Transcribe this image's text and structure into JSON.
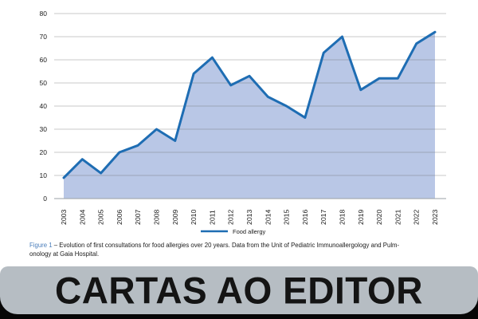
{
  "chart_data": {
    "type": "area",
    "x": [
      "2003",
      "2004",
      "2005",
      "2006",
      "2007",
      "2008",
      "2009",
      "2010",
      "2011",
      "2012",
      "2013",
      "2014",
      "2015",
      "2016",
      "2017",
      "2018",
      "2019",
      "2020",
      "2021",
      "2022",
      "2023"
    ],
    "series": [
      {
        "name": "Food allergy",
        "values": [
          9,
          17,
          11,
          20,
          23,
          30,
          25,
          54,
          61,
          49,
          53,
          44,
          40,
          35,
          63,
          70,
          47,
          52,
          52,
          67,
          72
        ]
      }
    ],
    "xlabel": "",
    "ylabel": "",
    "ylim": [
      0,
      80
    ],
    "ytick_step": 10,
    "grid": true,
    "legend_position": "bottom-center",
    "line_color": "#1e6db3",
    "fill_color": "#b9c7e6",
    "gridline_color": "rgba(110,110,110,0.38)",
    "axis_line_color": "#9aa0a6",
    "tick_label_color": "#1a1a1a"
  },
  "caption": {
    "figure_label": "Figure 1",
    "line1": " – Evolution of first consultations for food allergies over 20 years. Data from the Unit of Pediatric Immunoallergology and Pulm-",
    "line2": "onology at Gaia Hospital."
  },
  "banner": {
    "title": "CARTAS AO EDITOR",
    "plate_color": "#b6bdc3",
    "background_color": "#060606"
  }
}
